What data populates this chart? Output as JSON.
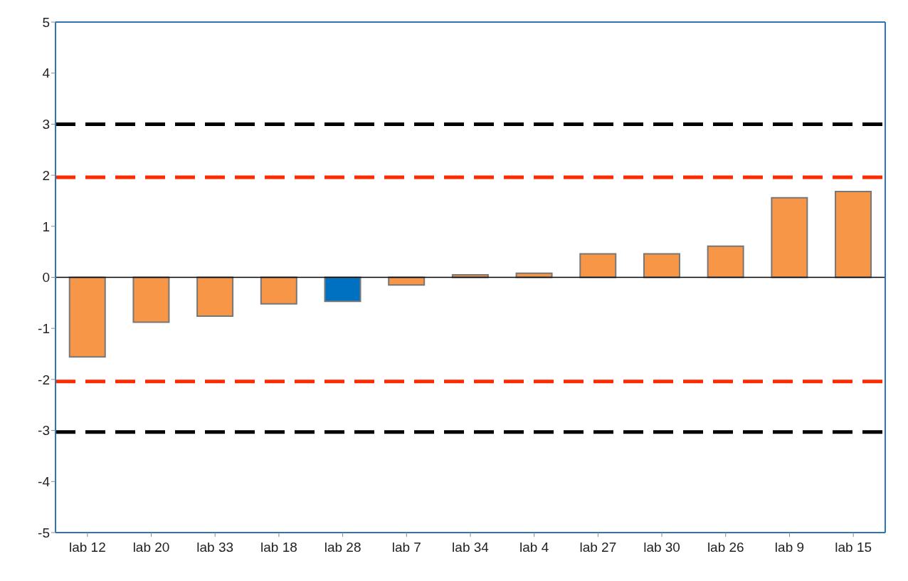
{
  "chart_data": {
    "type": "bar",
    "categories": [
      "lab 12",
      "lab 20",
      "lab 33",
      "lab 18",
      "lab 28",
      "lab 7",
      "lab 34",
      "lab 4",
      "lab 27",
      "lab 30",
      "lab 26",
      "lab 9",
      "lab 15"
    ],
    "values": [
      -1.56,
      -0.88,
      -0.76,
      -0.52,
      -0.47,
      -0.15,
      0.05,
      0.08,
      0.46,
      0.46,
      0.61,
      1.56,
      1.68
    ],
    "colors": [
      "#f79646",
      "#f79646",
      "#f79646",
      "#f79646",
      "#0070c0",
      "#f79646",
      "#f79646",
      "#f79646",
      "#f79646",
      "#f79646",
      "#f79646",
      "#f79646",
      "#f79646"
    ],
    "ylim": [
      -5,
      5
    ],
    "yticks": [
      -5,
      -4,
      -3,
      -2,
      -1,
      0,
      1,
      2,
      3,
      4,
      5
    ],
    "grid": false,
    "legend": false,
    "ref_lines": [
      {
        "axis": "y",
        "value": 3,
        "color": "#000000",
        "line_style": "dashed"
      },
      {
        "axis": "y",
        "value": 1.96,
        "color": "#ff2a00",
        "line_style": "dashed"
      },
      {
        "axis": "y",
        "value": -2.04,
        "color": "#ff2a00",
        "line_style": "dashed"
      },
      {
        "axis": "y",
        "value": -3.03,
        "color": "#000000",
        "line_style": "dashed"
      }
    ]
  }
}
